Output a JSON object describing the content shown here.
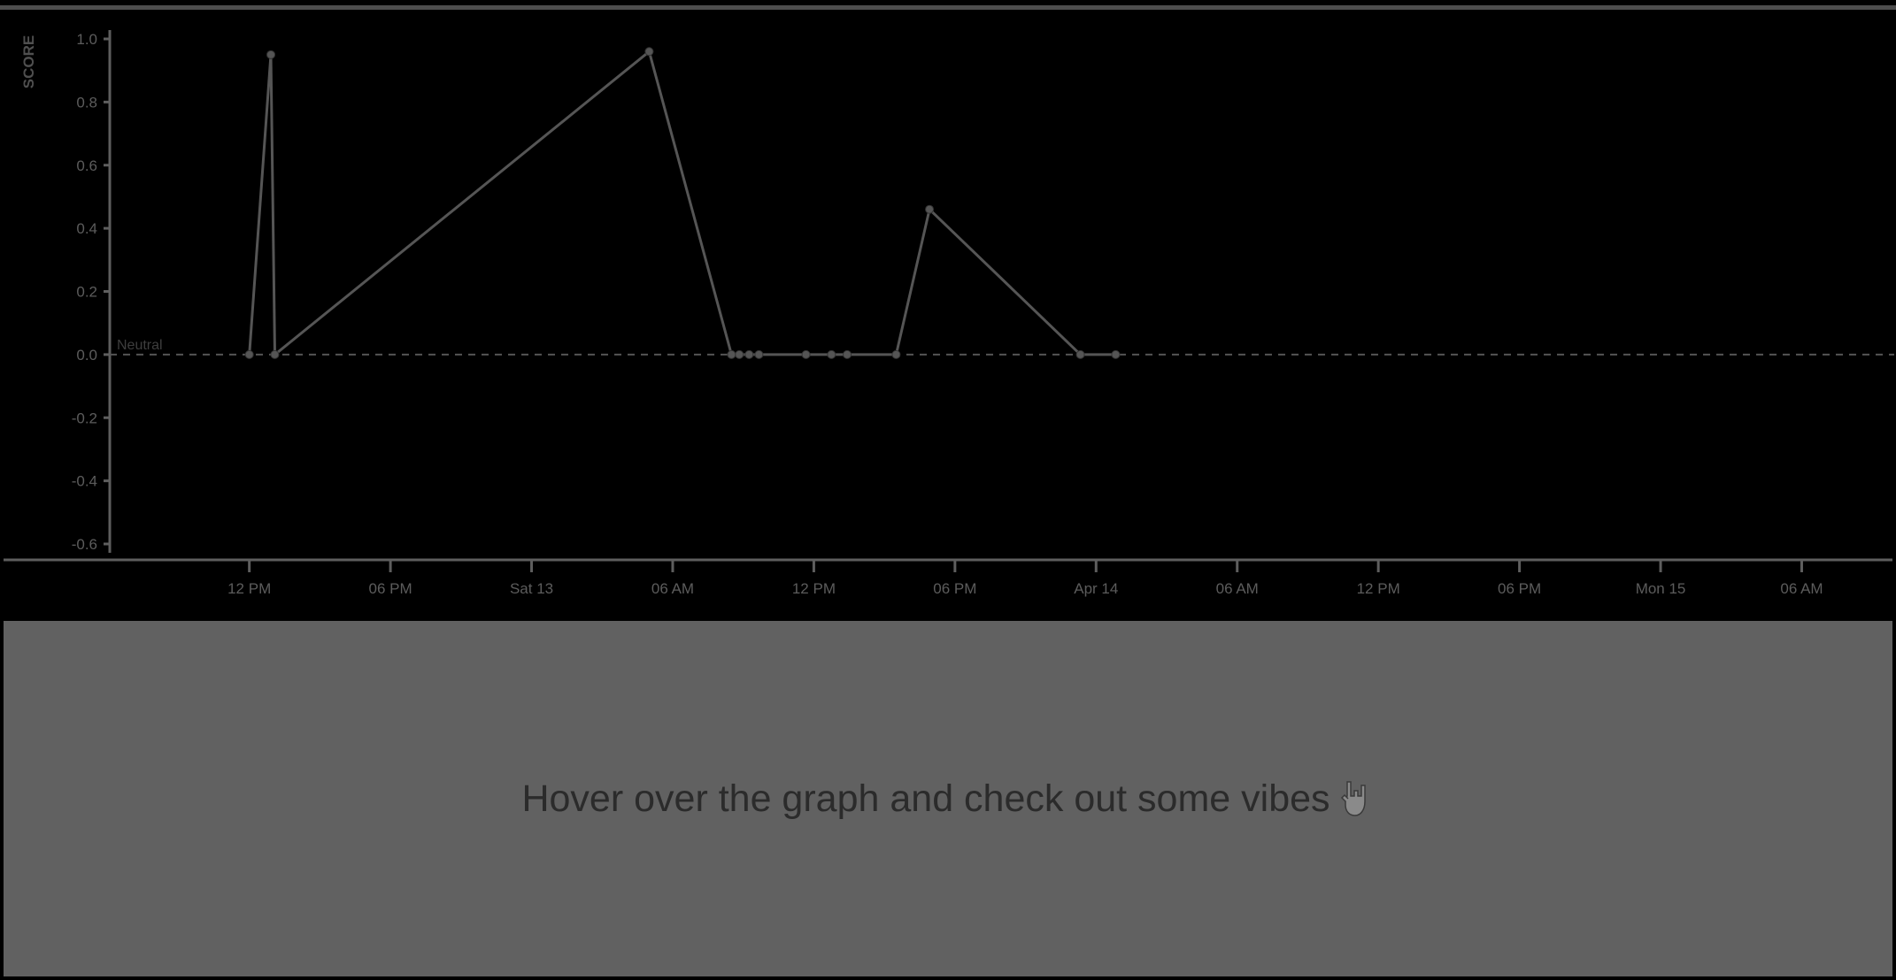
{
  "chart_data": {
    "type": "line",
    "ylabel": "SCORE",
    "ylim": [
      -0.6,
      1.0
    ],
    "y_ticks": [
      "1.0",
      "0.8",
      "0.6",
      "0.4",
      "0.2",
      "0.0",
      "-0.2",
      "-0.4",
      "-0.6"
    ],
    "x_ticks": [
      {
        "label": "12 PM",
        "at": "2024-04-12T12:00"
      },
      {
        "label": "06 PM",
        "at": "2024-04-12T18:00"
      },
      {
        "label": "Sat 13",
        "at": "2024-04-13T00:00"
      },
      {
        "label": "06 AM",
        "at": "2024-04-13T06:00"
      },
      {
        "label": "12 PM",
        "at": "2024-04-13T12:00"
      },
      {
        "label": "06 PM",
        "at": "2024-04-13T18:00"
      },
      {
        "label": "Apr 14",
        "at": "2024-04-14T00:00"
      },
      {
        "label": "06 AM",
        "at": "2024-04-14T06:00"
      },
      {
        "label": "12 PM",
        "at": "2024-04-14T12:00"
      },
      {
        "label": "06 PM",
        "at": "2024-04-14T18:00"
      },
      {
        "label": "Mon 15",
        "at": "2024-04-15T00:00"
      },
      {
        "label": "06 AM",
        "at": "2024-04-15T06:00"
      }
    ],
    "xlim": [
      "2024-04-12T06:04",
      "2024-04-15T09:56"
    ],
    "reference_line": {
      "y": 0.0,
      "label": "Neutral",
      "style": "dashed"
    },
    "series": [
      {
        "points": [
          {
            "x": "2024-04-12T12:00",
            "y": 0.0
          },
          {
            "x": "2024-04-12T12:55",
            "y": 0.95
          },
          {
            "x": "2024-04-12T13:05",
            "y": 0.0
          },
          {
            "x": "2024-04-13T05:00",
            "y": 0.96
          },
          {
            "x": "2024-04-13T08:30",
            "y": 0.0
          },
          {
            "x": "2024-04-13T08:50",
            "y": 0.0
          },
          {
            "x": "2024-04-13T09:15",
            "y": 0.0
          },
          {
            "x": "2024-04-13T09:40",
            "y": 0.0
          },
          {
            "x": "2024-04-13T11:40",
            "y": 0.0
          },
          {
            "x": "2024-04-13T12:45",
            "y": 0.0
          },
          {
            "x": "2024-04-13T13:25",
            "y": 0.0
          },
          {
            "x": "2024-04-13T15:30",
            "y": 0.0
          },
          {
            "x": "2024-04-13T16:55",
            "y": 0.46
          },
          {
            "x": "2024-04-13T23:20",
            "y": 0.0
          },
          {
            "x": "2024-04-14T00:50",
            "y": 0.0
          }
        ]
      }
    ]
  },
  "info_panel": {
    "message": "Hover over the graph and check out some vibes",
    "icon": "rock-on-hand-icon"
  },
  "colors": {
    "background": "#000000",
    "panel": "#616161",
    "axis": "#5e5e5e",
    "line": "#555555",
    "text": "#5c5c5c"
  }
}
